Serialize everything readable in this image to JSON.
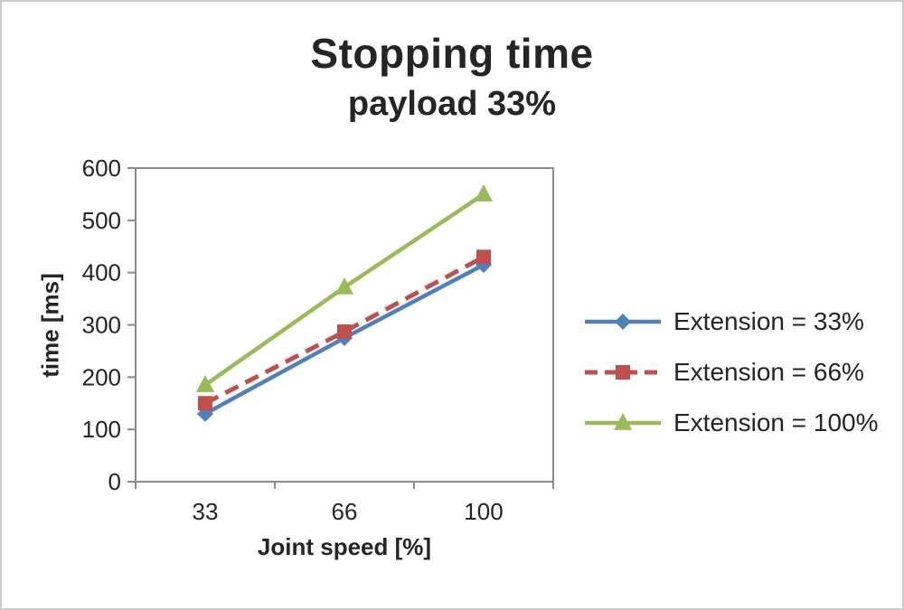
{
  "title": "Stopping time",
  "subtitle": "payload 33%",
  "chart_data": {
    "type": "line",
    "title": "Stopping time",
    "subtitle": "payload 33%",
    "xlabel": "Joint speed [%]",
    "ylabel": "time [ms]",
    "categories": [
      "33",
      "66",
      "100"
    ],
    "x": [
      33,
      66,
      100
    ],
    "series": [
      {
        "name": "Extension = 33%",
        "values": [
          130,
          275,
          415
        ],
        "color": "#4F81BD",
        "marker": "diamond",
        "dash": false
      },
      {
        "name": "Extension = 66%",
        "values": [
          150,
          287,
          430
        ],
        "color": "#C0504D",
        "marker": "square",
        "dash": true
      },
      {
        "name": "Extension = 100%",
        "values": [
          185,
          372,
          550
        ],
        "color": "#9BBB59",
        "marker": "triangle",
        "dash": false
      }
    ],
    "ylim": [
      0,
      600
    ],
    "yticks": [
      0,
      100,
      200,
      300,
      400,
      500,
      600
    ],
    "grid": false,
    "legend_position": "right",
    "axis_color": "#8c8c8c",
    "text_color": "#252525"
  }
}
